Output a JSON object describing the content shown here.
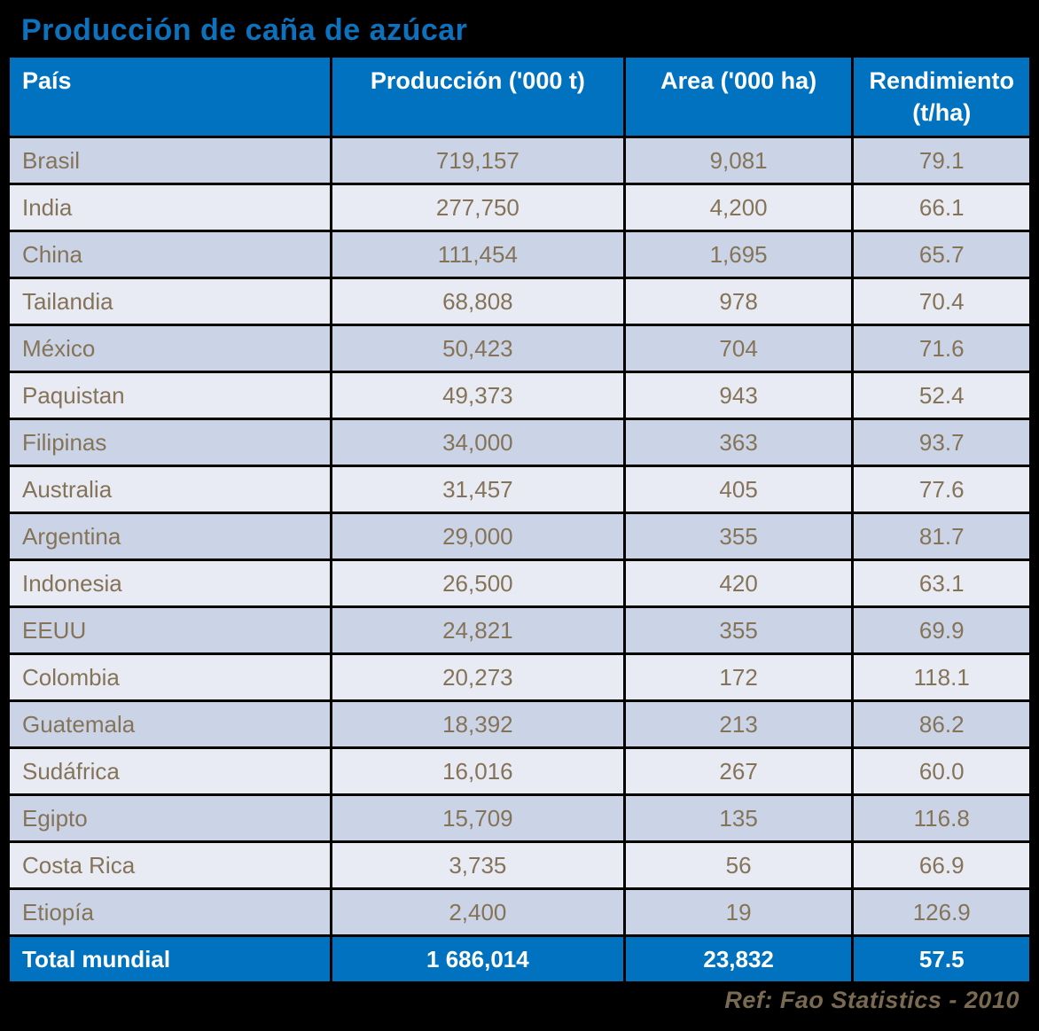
{
  "title": {
    "text": "Producción de caña de azúcar"
  },
  "colors": {
    "page-bg": "#000000",
    "grid": "#ffffff",
    "header-bg": "#0072c0",
    "header-text": "#ffffff",
    "row-dark": "#cbd4e6",
    "row-light": "#e8ebf4",
    "data-text": "#857358",
    "title-color": "#0c72bd",
    "footer-text": "#7a6a52"
  },
  "table": {
    "header": {
      "columns": [
        "País",
        "Producción ('000 t)",
        "Area ('000 ha)",
        "Rendimiento (t/ha)"
      ]
    },
    "rows": [
      {
        "country": "Brasil",
        "production": "719,157",
        "area": "9,081",
        "yield": "79.1"
      },
      {
        "country": "India",
        "production": "277,750",
        "area": "4,200",
        "yield": "66.1"
      },
      {
        "country": "China",
        "production": "111,454",
        "area": "1,695",
        "yield": "65.7"
      },
      {
        "country": "Tailandia",
        "production": "68,808",
        "area": "978",
        "yield": "70.4"
      },
      {
        "country": "México",
        "production": "50,423",
        "area": "704",
        "yield": "71.6"
      },
      {
        "country": "Paquistan",
        "production": "49,373",
        "area": "943",
        "yield": "52.4"
      },
      {
        "country": "Filipinas",
        "production": "34,000",
        "area": "363",
        "yield": "93.7"
      },
      {
        "country": "Australia",
        "production": "31,457",
        "area": "405",
        "yield": "77.6"
      },
      {
        "country": "Argentina",
        "production": "29,000",
        "area": "355",
        "yield": "81.7"
      },
      {
        "country": "Indonesia",
        "production": "26,500",
        "area": "420",
        "yield": "63.1"
      },
      {
        "country": "EEUU",
        "production": "24,821",
        "area": "355",
        "yield": "69.9"
      },
      {
        "country": "Colombia",
        "production": "20,273",
        "area": "172",
        "yield": "118.1"
      },
      {
        "country": "Guatemala",
        "production": "18,392",
        "area": "213",
        "yield": "86.2"
      },
      {
        "country": "Sudáfrica",
        "production": "16,016",
        "area": "267",
        "yield": "60.0"
      },
      {
        "country": "Egipto",
        "production": "15,709",
        "area": "135",
        "yield": "116.8"
      },
      {
        "country": "Costa Rica",
        "production": "3,735",
        "area": "56",
        "yield": "66.9"
      },
      {
        "country": "Etiopía",
        "production": "2,400",
        "area": "19",
        "yield": "126.9"
      }
    ],
    "total": {
      "label": "Total mundial",
      "production": "1 686,014",
      "area": "23,832",
      "yield": "57.5"
    }
  },
  "footer": {
    "text": "Ref: Fao Statistics - 2010"
  },
  "chart_data": {
    "type": "table",
    "title": "Producción de caña de azúcar",
    "columns": [
      "País",
      "Producción ('000 t)",
      "Area ('000 ha)",
      "Rendimiento (t/ha)"
    ],
    "categories": [
      "Brasil",
      "India",
      "China",
      "Tailandia",
      "México",
      "Paquistan",
      "Filipinas",
      "Australia",
      "Argentina",
      "Indonesia",
      "EEUU",
      "Colombia",
      "Guatemala",
      "Sudáfrica",
      "Egipto",
      "Costa Rica",
      "Etiopía"
    ],
    "series": [
      {
        "name": "Producción ('000 t)",
        "values": [
          719157,
          277750,
          111454,
          68808,
          50423,
          49373,
          34000,
          31457,
          29000,
          26500,
          24821,
          20273,
          18392,
          16016,
          15709,
          3735,
          2400
        ]
      },
      {
        "name": "Area ('000 ha)",
        "values": [
          9081,
          4200,
          1695,
          978,
          704,
          943,
          363,
          405,
          355,
          420,
          355,
          172,
          213,
          267,
          135,
          56,
          19
        ]
      },
      {
        "name": "Rendimiento (t/ha)",
        "values": [
          79.1,
          66.1,
          65.7,
          70.4,
          71.6,
          52.4,
          93.7,
          77.6,
          81.7,
          63.1,
          69.9,
          118.1,
          86.2,
          60.0,
          116.8,
          66.9,
          126.9
        ]
      }
    ],
    "totals": {
      "Producción ('000 t)": "1 686,014",
      "Area ('000 ha)": 23832,
      "Rendimiento (t/ha)": 57.5
    },
    "source": "Ref: Fao Statistics - 2010"
  }
}
